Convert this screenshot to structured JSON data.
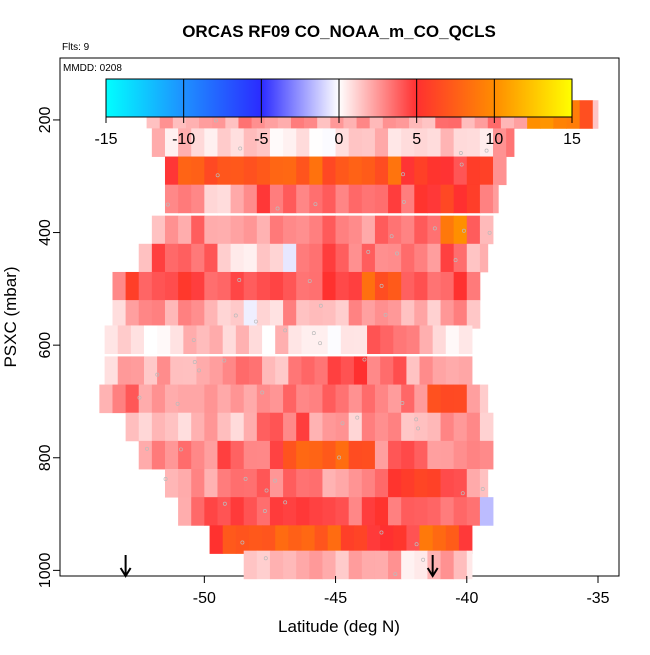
{
  "chart_data": {
    "type": "heatmap",
    "title": "ORCAS RF09 CO_NOAA_m_CO_QCLS",
    "subtitle": "Flts: 9",
    "annotation": "MMDD: 0208",
    "xlabel": "Latitude (deg N)",
    "ylabel": "PSXC (mbar)",
    "xlim": [
      -55.5,
      -34.2
    ],
    "ylim": [
      1010,
      90
    ],
    "x_ticks": [
      -50,
      -45,
      -40,
      -35
    ],
    "y_ticks": [
      200,
      400,
      600,
      800,
      1000
    ],
    "colorbar": {
      "ticks": [
        -15,
        -10,
        -5,
        0,
        5,
        10,
        15
      ],
      "range": [
        -15,
        15
      ],
      "colors": [
        "#00ffff",
        "#1e90ff",
        "#2b2bff",
        "#ffffff",
        "#ff3030",
        "#ff8c00",
        "#ffff00"
      ]
    },
    "arrows_at_latitude": [
      -53.0,
      -41.3
    ],
    "bands": [
      {
        "pressure": 190,
        "lat_min": -52.2,
        "lat_max": -35.0,
        "base": 2.5,
        "segments": [
          {
            "from": -37.8,
            "to": -35.0,
            "value": 10
          }
        ]
      },
      {
        "pressure": 240,
        "lat_min": -52.5,
        "lat_max": -38.2,
        "base": 1.0,
        "segments": [
          {
            "from": -39.0,
            "to": -38.2,
            "value": 5
          }
        ]
      },
      {
        "pressure": 290,
        "lat_min": -51.5,
        "lat_max": -38.5,
        "base": 7.5,
        "segments": [
          {
            "from": -42.5,
            "to": -38.5,
            "value": 5
          }
        ]
      },
      {
        "pressure": 340,
        "lat_min": -51.5,
        "lat_max": -38.8,
        "base": 4.0,
        "segments": [
          {
            "from": -50.0,
            "to": -48.0,
            "value": 2
          },
          {
            "from": -42.0,
            "to": -38.8,
            "value": 6
          }
        ]
      },
      {
        "pressure": 395,
        "lat_min": -52.0,
        "lat_max": -39.0,
        "base": 3.0,
        "segments": [
          {
            "from": -41.0,
            "to": -40.0,
            "value": 9
          }
        ]
      },
      {
        "pressure": 445,
        "lat_min": -52.5,
        "lat_max": -39.2,
        "base": 3.5,
        "segments": [
          {
            "from": -49.5,
            "to": -46.5,
            "value": 0.5
          }
        ]
      },
      {
        "pressure": 495,
        "lat_min": -53.5,
        "lat_max": -39.5,
        "base": 4.5,
        "segments": [
          {
            "from": -44.0,
            "to": -42.5,
            "value": 7.5
          },
          {
            "from": -53.5,
            "to": -52.5,
            "value": 5
          }
        ]
      },
      {
        "pressure": 545,
        "lat_min": -53.5,
        "lat_max": -39.5,
        "base": 2.0,
        "segments": [
          {
            "from": -48.5,
            "to": -47.0,
            "value": 0.5
          }
        ]
      },
      {
        "pressure": 590,
        "lat_min": -53.8,
        "lat_max": -39.8,
        "base": 1.0,
        "segments": [
          {
            "from": -44.0,
            "to": -41.5,
            "value": 3
          }
        ]
      },
      {
        "pressure": 645,
        "lat_min": -53.8,
        "lat_max": -39.8,
        "base": 2.5,
        "segments": [
          {
            "from": -45.5,
            "to": -42.5,
            "value": 4
          }
        ]
      },
      {
        "pressure": 695,
        "lat_min": -54.0,
        "lat_max": -39.2,
        "base": 3.0,
        "segments": [
          {
            "from": -41.5,
            "to": -39.8,
            "value": 6.5
          }
        ]
      },
      {
        "pressure": 745,
        "lat_min": -53.0,
        "lat_max": -39.0,
        "base": 2.0,
        "segments": [
          {
            "from": -48.0,
            "to": -46.0,
            "value": 4
          }
        ]
      },
      {
        "pressure": 795,
        "lat_min": -52.5,
        "lat_max": -39.0,
        "base": 3.5,
        "segments": [
          {
            "from": -47.0,
            "to": -43.5,
            "value": 7.5
          }
        ]
      },
      {
        "pressure": 845,
        "lat_min": -51.5,
        "lat_max": -39.2,
        "base": 3.0,
        "segments": [
          {
            "from": -43.0,
            "to": -40.0,
            "value": 5
          }
        ]
      },
      {
        "pressure": 895,
        "lat_min": -51.0,
        "lat_max": -39.0,
        "base": 4.0,
        "segments": [
          {
            "from": -39.5,
            "to": -39.0,
            "value": -2
          }
        ]
      },
      {
        "pressure": 945,
        "lat_min": -49.8,
        "lat_max": -39.8,
        "base": 8.0,
        "segments": [
          {
            "from": -45.0,
            "to": -42.0,
            "value": 5
          }
        ]
      },
      {
        "pressure": 990,
        "lat_min": -48.5,
        "lat_max": -39.8,
        "base": 1.5,
        "segments": []
      }
    ]
  }
}
